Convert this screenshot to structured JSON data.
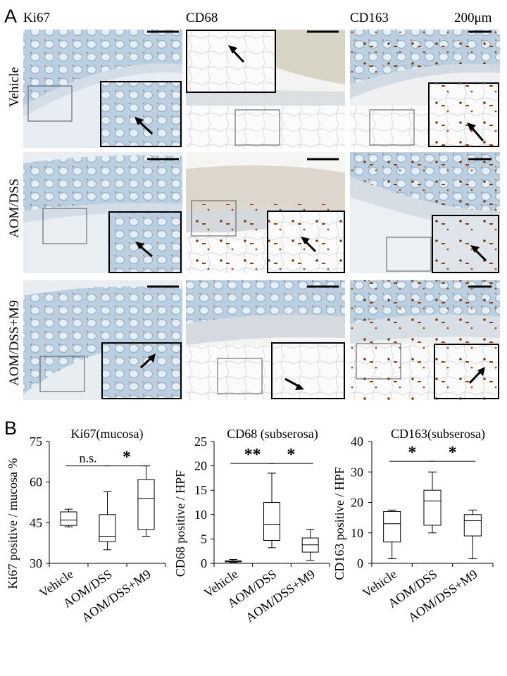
{
  "panel_a": {
    "letter": "A",
    "columns": [
      "Ki67",
      "CD68",
      "CD163"
    ],
    "rows": [
      "Vehicle",
      "AOM/DSS",
      "AOM/DSS+M9"
    ],
    "scale_bar_label": "200μm"
  },
  "panel_b": {
    "letter": "B"
  },
  "chart_data": [
    {
      "type": "box",
      "title": "Ki67(mucosa)",
      "ylabel": "Ki67 positive / mucosa %",
      "ylim": [
        30,
        75
      ],
      "yticks": [
        30,
        45,
        60,
        75
      ],
      "categories": [
        "Vehicle",
        "AOM/DSS",
        "AOM/DSS+M9"
      ],
      "boxes": [
        {
          "min": 43.5,
          "q1": 44,
          "median": 46,
          "q3": 49,
          "max": 50
        },
        {
          "min": 35,
          "q1": 38,
          "median": 40,
          "q3": 48,
          "max": 56.5
        },
        {
          "min": 40,
          "q1": 42.5,
          "median": 54,
          "q3": 61,
          "max": 66
        }
      ],
      "significance": [
        {
          "label": "n.s.",
          "from": 0,
          "to": 1,
          "y": 66
        },
        {
          "label": "*",
          "from": 1,
          "to": 2,
          "y": 66
        }
      ]
    },
    {
      "type": "box",
      "title": "CD68 (subserosa)",
      "ylabel": "CD68 positive / HPF",
      "ylim": [
        0,
        25
      ],
      "yticks": [
        0,
        5,
        10,
        15,
        20,
        25
      ],
      "categories": [
        "Vehicle",
        "AOM/DSS",
        "AOM/DSS+M9"
      ],
      "boxes": [
        {
          "min": 0.2,
          "q1": 0.3,
          "median": 0.4,
          "q3": 0.5,
          "max": 0.8
        },
        {
          "min": 3.2,
          "q1": 4.7,
          "median": 8,
          "q3": 12.5,
          "max": 18.5
        },
        {
          "min": 0.6,
          "q1": 2.3,
          "median": 3.8,
          "q3": 5.2,
          "max": 7
        }
      ],
      "significance": [
        {
          "label": "**",
          "from": 0,
          "to": 1,
          "y": 20.5
        },
        {
          "label": "*",
          "from": 1,
          "to": 2,
          "y": 20.5
        }
      ]
    },
    {
      "type": "box",
      "title": "CD163(subserosa)",
      "ylabel": "CD163 positive / HPF",
      "ylim": [
        0,
        40
      ],
      "yticks": [
        0,
        10,
        20,
        30,
        40
      ],
      "categories": [
        "Vehicle",
        "AOM/DSS",
        "AOM/DSS+M9"
      ],
      "boxes": [
        {
          "min": 1.5,
          "q1": 7,
          "median": 13,
          "q3": 17,
          "max": 17.5
        },
        {
          "min": 10,
          "q1": 12.5,
          "median": 20.5,
          "q3": 24,
          "max": 30
        },
        {
          "min": 1.5,
          "q1": 9,
          "median": 14,
          "q3": 16,
          "max": 17.5
        }
      ],
      "significance": [
        {
          "label": "*",
          "from": 0,
          "to": 1,
          "y": 33.5
        },
        {
          "label": "*",
          "from": 1,
          "to": 2,
          "y": 33.5
        }
      ]
    }
  ]
}
